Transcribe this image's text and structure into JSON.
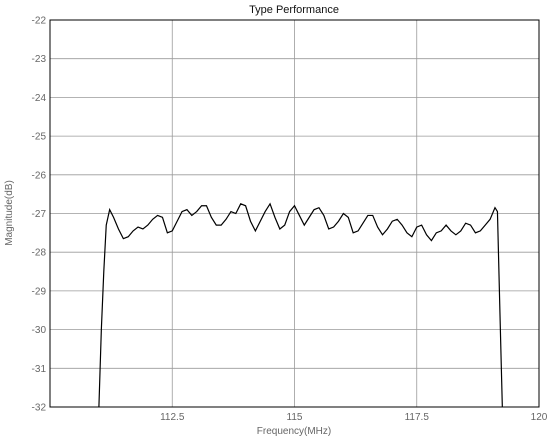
{
  "chart_data": {
    "type": "line",
    "title": "Type Performance",
    "xlabel": "Frequency(MHz)",
    "ylabel": "Magnitude(dB)",
    "xlim": [
      110,
      120
    ],
    "ylim": [
      -32,
      -22
    ],
    "xticks": [
      {
        "value": 112.5,
        "label": "112.5"
      },
      {
        "value": 115,
        "label": "115"
      },
      {
        "value": 117.5,
        "label": "117.5"
      },
      {
        "value": 120,
        "label": "120"
      }
    ],
    "yticks": [
      {
        "value": -22,
        "label": "-22"
      },
      {
        "value": -23,
        "label": "-23"
      },
      {
        "value": -24,
        "label": "-24"
      },
      {
        "value": -25,
        "label": "-25"
      },
      {
        "value": -26,
        "label": "-26"
      },
      {
        "value": -27,
        "label": "-27"
      },
      {
        "value": -28,
        "label": "-28"
      },
      {
        "value": -29,
        "label": "-29"
      },
      {
        "value": -30,
        "label": "-30"
      },
      {
        "value": -31,
        "label": "-31"
      },
      {
        "value": -32,
        "label": "-32"
      }
    ],
    "grid": true,
    "series": [
      {
        "color": "#000000",
        "x": [
          111.0,
          111.05,
          111.1,
          111.15,
          111.22,
          111.3,
          111.4,
          111.5,
          111.6,
          111.7,
          111.8,
          111.9,
          112.0,
          112.1,
          112.2,
          112.3,
          112.4,
          112.5,
          112.6,
          112.7,
          112.8,
          112.9,
          113.0,
          113.1,
          113.2,
          113.3,
          113.4,
          113.5,
          113.6,
          113.7,
          113.8,
          113.9,
          114.0,
          114.1,
          114.2,
          114.3,
          114.4,
          114.5,
          114.6,
          114.7,
          114.8,
          114.9,
          115.0,
          115.1,
          115.2,
          115.3,
          115.4,
          115.5,
          115.6,
          115.7,
          115.8,
          115.9,
          116.0,
          116.1,
          116.2,
          116.3,
          116.4,
          116.5,
          116.6,
          116.7,
          116.8,
          116.9,
          117.0,
          117.1,
          117.2,
          117.3,
          117.4,
          117.5,
          117.6,
          117.7,
          117.8,
          117.9,
          118.0,
          118.1,
          118.2,
          118.3,
          118.4,
          118.5,
          118.6,
          118.7,
          118.8,
          118.9,
          119.0,
          119.1,
          119.15,
          119.2,
          119.25
        ],
        "y": [
          -32.0,
          -30.0,
          -28.5,
          -27.3,
          -26.9,
          -27.1,
          -27.4,
          -27.65,
          -27.6,
          -27.45,
          -27.35,
          -27.4,
          -27.3,
          -27.15,
          -27.05,
          -27.1,
          -27.5,
          -27.45,
          -27.2,
          -26.95,
          -26.9,
          -27.05,
          -26.95,
          -26.8,
          -26.8,
          -27.1,
          -27.3,
          -27.3,
          -27.15,
          -26.95,
          -27.0,
          -26.75,
          -26.8,
          -27.2,
          -27.45,
          -27.2,
          -26.95,
          -26.75,
          -27.1,
          -27.4,
          -27.3,
          -26.95,
          -26.8,
          -27.05,
          -27.3,
          -27.1,
          -26.9,
          -26.85,
          -27.05,
          -27.4,
          -27.35,
          -27.2,
          -27.0,
          -27.1,
          -27.5,
          -27.45,
          -27.25,
          -27.05,
          -27.05,
          -27.35,
          -27.55,
          -27.4,
          -27.2,
          -27.15,
          -27.3,
          -27.5,
          -27.6,
          -27.35,
          -27.3,
          -27.55,
          -27.7,
          -27.5,
          -27.45,
          -27.3,
          -27.45,
          -27.55,
          -27.45,
          -27.25,
          -27.3,
          -27.5,
          -27.45,
          -27.3,
          -27.15,
          -26.85,
          -26.95,
          -29.5,
          -32.0
        ]
      }
    ]
  }
}
